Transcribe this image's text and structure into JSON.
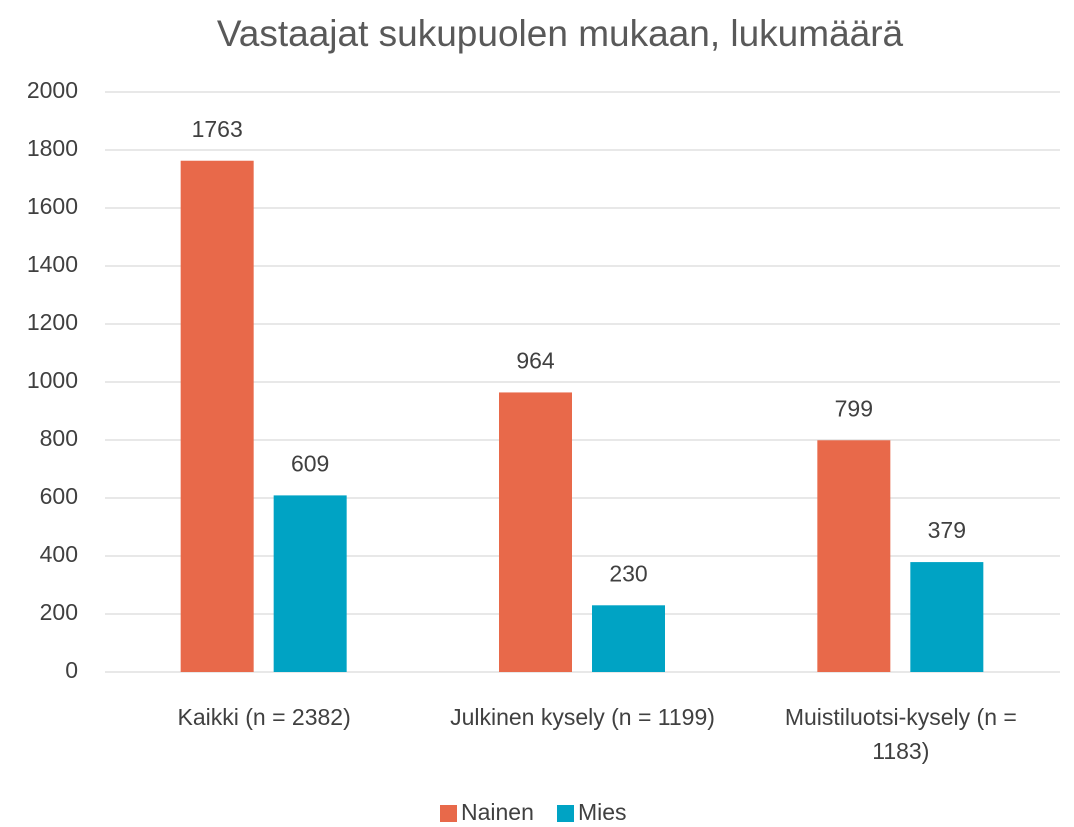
{
  "chart_data": {
    "type": "bar",
    "title": "Vastaajat sukupuolen mukaan, lukumäärä",
    "categories": [
      "Kaikki (n = 2382)",
      "Julkinen kysely (n = 1199)",
      "Muistiluotsi-kysely (n = 1183)"
    ],
    "series": [
      {
        "name": "Nainen",
        "color": "#e8694a",
        "values": [
          1763,
          964,
          799
        ]
      },
      {
        "name": "Mies",
        "color": "#00a3c4",
        "values": [
          609,
          230,
          379
        ]
      }
    ],
    "ylim": [
      0,
      2000
    ],
    "yticks": [
      0,
      200,
      400,
      600,
      800,
      1000,
      1200,
      1400,
      1600,
      1800,
      2000
    ],
    "grid": true,
    "legend": "bottom"
  }
}
